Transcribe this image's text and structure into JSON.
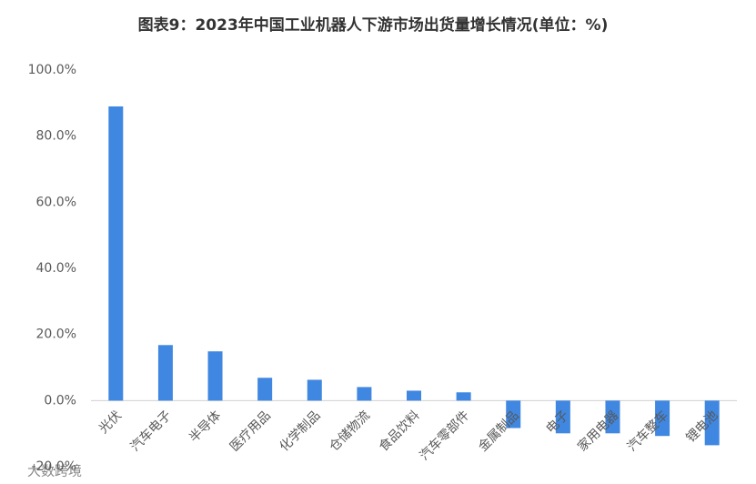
{
  "chart_data": {
    "type": "bar",
    "title": "图表9：2023年中国工业机器人下游市场出货量增长情况(单位：%)",
    "categories": [
      "光伏",
      "汽车电子",
      "半导体",
      "医疗用品",
      "化学制品",
      "仓储物流",
      "食品饮料",
      "汽车零部件",
      "金属制品",
      "电子",
      "家用电器",
      "汽车整车",
      "锂电池"
    ],
    "values": [
      89.0,
      16.8,
      14.9,
      6.9,
      6.3,
      4.1,
      3.0,
      2.5,
      -8.3,
      -9.9,
      -9.9,
      -10.7,
      -13.5
    ],
    "color": "#3f87e0",
    "ylim": [
      -20,
      100
    ],
    "yticks": [
      {
        "value": -20,
        "label": "-20.0%"
      },
      {
        "value": 0,
        "label": "0.0%"
      },
      {
        "value": 20,
        "label": "20.0%"
      },
      {
        "value": 40,
        "label": "40.0%"
      },
      {
        "value": 60,
        "label": "60.0%"
      },
      {
        "value": 80,
        "label": "80.0%"
      },
      {
        "value": 100,
        "label": "100.0%"
      }
    ],
    "grid": false,
    "brand": "大数跨境"
  }
}
